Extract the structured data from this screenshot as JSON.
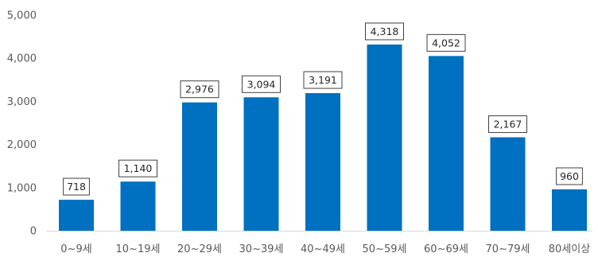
{
  "chart_data": {
    "type": "bar",
    "categories": [
      "0~9세",
      "10~19세",
      "20~29세",
      "30~39세",
      "40~49세",
      "50~59세",
      "60~69세",
      "70~79세",
      "80세이상"
    ],
    "values": [
      718,
      1140,
      2976,
      3094,
      3191,
      4318,
      4052,
      2167,
      960
    ],
    "data_labels": [
      "718",
      "1,140",
      "2,976",
      "3,094",
      "3,191",
      "4,318",
      "4,052",
      "2,167",
      "960"
    ],
    "y_ticks": [
      0,
      1000,
      2000,
      3000,
      4000,
      5000
    ],
    "y_tick_labels": [
      "0",
      "1,000",
      "2,000",
      "3,000",
      "4,000",
      "5,000"
    ],
    "ylim": [
      0,
      5000
    ],
    "grid": false,
    "legend": "none",
    "bar_color": "#0070c0",
    "label_border_color": "#404040"
  }
}
